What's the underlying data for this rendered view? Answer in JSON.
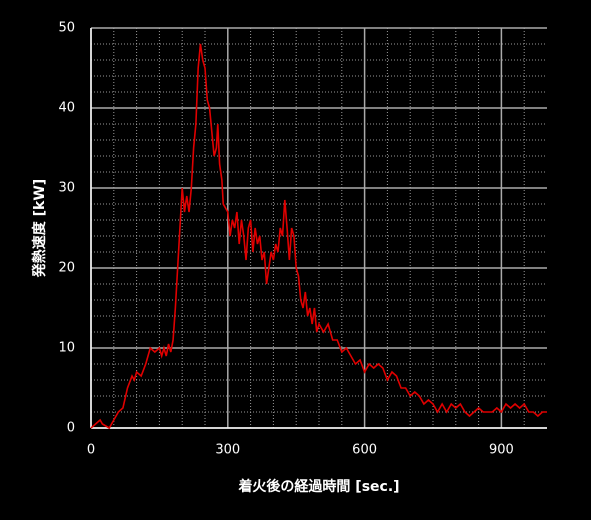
{
  "chart_data": {
    "type": "line",
    "xlabel": "着火後の経過時間 [sec.]",
    "ylabel": "発熱速度 [kW]",
    "xlim": [
      0,
      1000
    ],
    "ylim": [
      0,
      50
    ],
    "xticks": [
      0,
      300,
      600,
      900
    ],
    "yticks": [
      0,
      10,
      20,
      30,
      40,
      50
    ],
    "xminorticks": [
      50,
      100,
      150,
      200,
      250,
      350,
      400,
      450,
      500,
      550,
      650,
      700,
      750,
      800,
      850,
      950
    ],
    "yminorticks": [
      2,
      4,
      6,
      8,
      12,
      14,
      16,
      18,
      22,
      24,
      26,
      28,
      32,
      34,
      36,
      38,
      42,
      44,
      46,
      48
    ],
    "grid": true,
    "x": [
      0,
      10,
      20,
      25,
      40,
      50,
      60,
      70,
      80,
      90,
      95,
      100,
      110,
      120,
      130,
      140,
      150,
      155,
      160,
      165,
      170,
      175,
      180,
      185,
      190,
      195,
      200,
      205,
      210,
      215,
      220,
      225,
      230,
      235,
      240,
      245,
      250,
      255,
      260,
      265,
      270,
      275,
      278,
      282,
      287,
      290,
      295,
      300,
      305,
      310,
      315,
      320,
      325,
      330,
      335,
      340,
      345,
      350,
      355,
      360,
      365,
      370,
      375,
      380,
      385,
      390,
      395,
      400,
      405,
      410,
      415,
      420,
      425,
      430,
      435,
      440,
      445,
      450,
      455,
      460,
      465,
      470,
      475,
      480,
      485,
      490,
      495,
      500,
      510,
      520,
      530,
      540,
      550,
      560,
      570,
      580,
      590,
      600,
      610,
      620,
      630,
      640,
      650,
      660,
      670,
      680,
      690,
      700,
      710,
      720,
      730,
      740,
      750,
      760,
      770,
      780,
      790,
      800,
      810,
      820,
      830,
      840,
      850,
      860,
      870,
      880,
      890,
      900,
      910,
      920,
      930,
      940,
      950,
      960,
      970,
      980,
      990,
      1000
    ],
    "series": [
      {
        "color": "#e00000",
        "values": [
          0,
          0.5,
          1,
          0.5,
          0,
          1,
          2,
          2.5,
          5,
          6.5,
          6,
          7,
          6.5,
          8,
          10,
          9.5,
          10,
          9,
          10,
          9,
          10.5,
          9.5,
          11,
          15,
          20,
          25,
          30,
          27,
          29,
          27,
          30,
          35,
          38,
          45,
          48,
          46,
          45,
          41,
          40,
          37,
          34,
          35,
          38,
          33,
          31,
          28,
          27.5,
          27,
          24,
          26,
          25,
          27,
          23,
          26,
          24,
          21,
          25,
          26,
          22,
          25,
          23,
          24,
          21,
          22,
          18,
          20,
          22,
          21,
          23,
          22,
          25,
          24,
          28.5,
          25,
          21,
          25,
          24,
          20,
          19,
          16,
          15,
          17,
          14,
          15,
          13,
          15,
          12,
          13,
          12,
          13,
          11,
          11,
          9.5,
          10,
          9,
          8,
          8.5,
          7,
          8,
          7.5,
          8,
          7.5,
          6,
          7,
          6.5,
          5,
          5,
          4,
          4.5,
          4,
          3,
          3.5,
          3,
          2,
          3,
          2,
          3,
          2.5,
          3,
          2,
          1.5,
          2,
          2.5,
          2,
          2,
          2,
          2.5,
          2,
          3,
          2.5,
          3,
          2.5,
          3,
          2,
          2,
          1.5,
          2,
          2
        ]
      }
    ]
  }
}
